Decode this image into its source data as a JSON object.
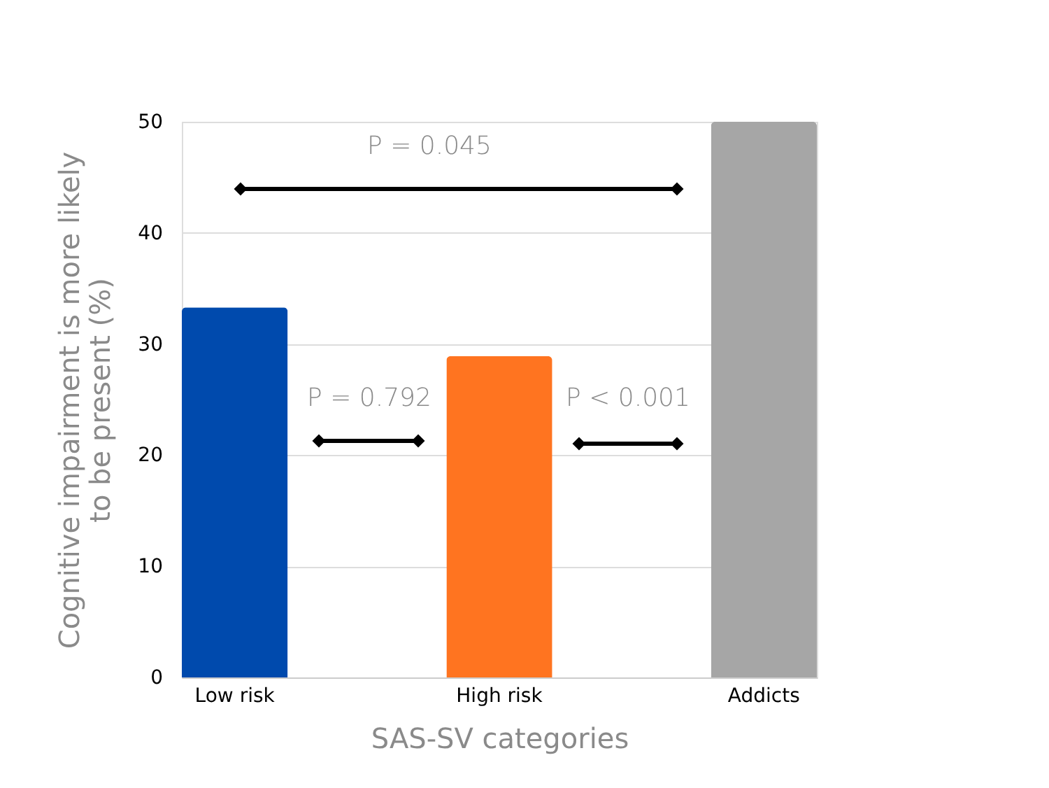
{
  "chart_data": {
    "type": "bar",
    "xlabel": "SAS-SV categories",
    "ylabel": "Cognitive impairment is more likely to be present (%)",
    "categories": [
      "Low risk",
      "High risk",
      "Addicts"
    ],
    "values": [
      33.3,
      28.9,
      50
    ],
    "colors": [
      "#004aad",
      "#ff7420",
      "#a6a6a6"
    ],
    "ylim": [
      0,
      50
    ],
    "yticks": [
      0,
      10,
      20,
      30,
      40,
      50
    ],
    "grid": "y",
    "annotations": [
      "P = 0.045",
      "P = 0.792",
      "P < 0.001"
    ]
  }
}
